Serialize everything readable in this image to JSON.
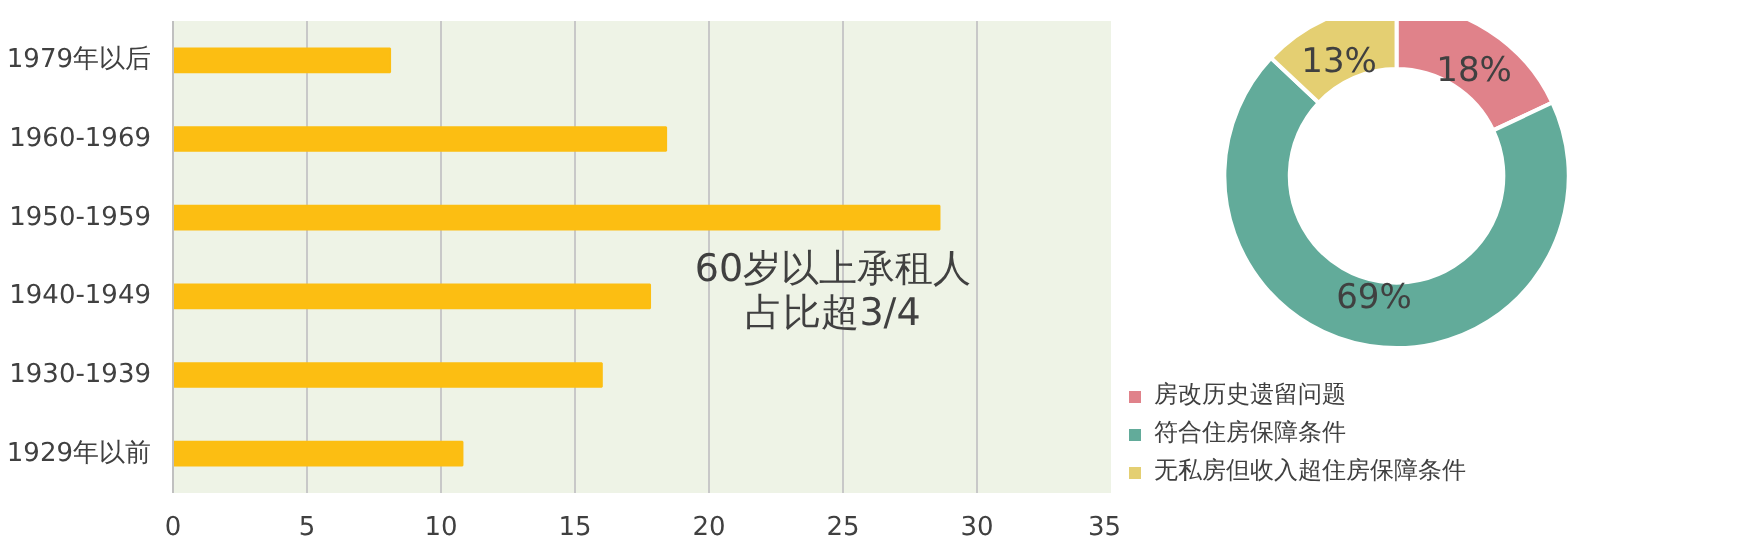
{
  "chart_data": [
    {
      "type": "bar",
      "orientation": "horizontal",
      "categories": [
        "1979年以后",
        "1960-1969",
        "1950-1959",
        "1940-1949",
        "1930-1939",
        "1929年以前"
      ],
      "values": [
        8.1,
        18.4,
        28.6,
        17.8,
        16.0,
        10.8
      ],
      "color": "#fcbe12",
      "xlim": [
        0,
        35
      ],
      "xticks": [
        0,
        5,
        10,
        15,
        20,
        25,
        30,
        35
      ],
      "grid": "x",
      "annotations": [
        "60岁以上承租人",
        "占比超3/4"
      ]
    },
    {
      "type": "donut",
      "categories": [
        "房改历史遗留问题",
        "符合住房保障条件",
        "无私房但收入超住房保障条件"
      ],
      "values": [
        18,
        69,
        13
      ],
      "colors": [
        "#e0828a",
        "#62ab9a",
        "#e4cf72"
      ],
      "value_labels": [
        "18%",
        "69%",
        "13%"
      ],
      "legend": "bottom"
    }
  ]
}
